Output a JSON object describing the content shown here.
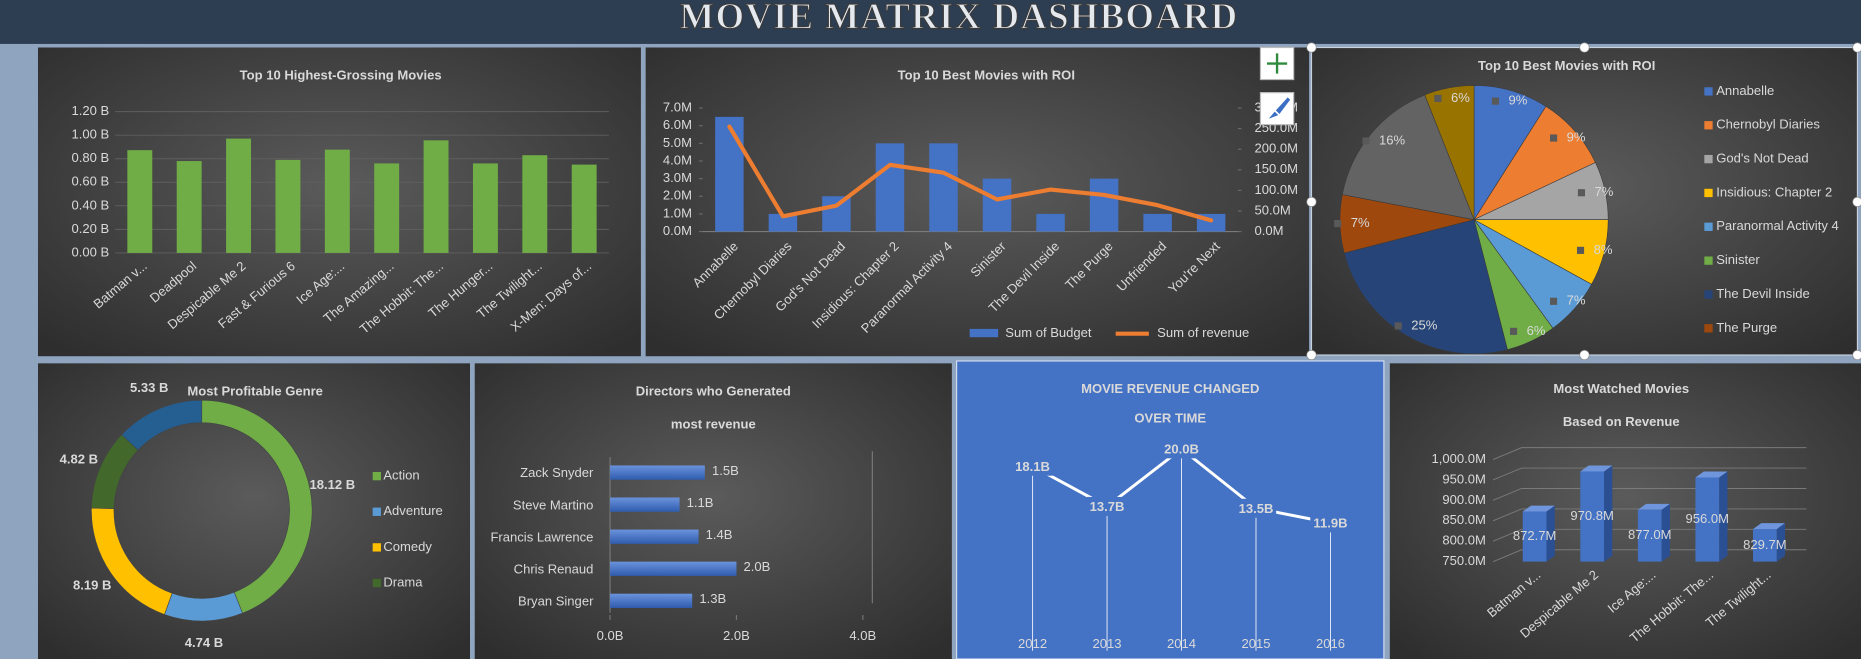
{
  "title": "MOVIE MATRIX DASHBOARD",
  "chart_data": [
    {
      "type": "bar",
      "title": "Top 10 Highest-Grossing Movies",
      "categories": [
        "Batman v...",
        "Deadpool",
        "Despicable Me 2",
        "Fast & Furious 6",
        "Ice Age:...",
        "The Amazing...",
        "The Hobbit: The...",
        "The Hunger...",
        "The Twilight...",
        "X-Men: Days of..."
      ],
      "values": [
        0.8727,
        0.78,
        0.9708,
        0.79,
        0.877,
        0.76,
        0.956,
        0.76,
        0.8297,
        0.75
      ],
      "color": "#70ad47",
      "ylim": [
        0,
        1.2
      ],
      "yticks": [
        {
          "value": 0,
          "label": "0.00 B"
        },
        {
          "value": 0.2,
          "label": "0.20 B"
        },
        {
          "value": 0.4,
          "label": "0.40 B"
        },
        {
          "value": 0.6,
          "label": "0.60 B"
        },
        {
          "value": 0.8,
          "label": "0.80 B"
        },
        {
          "value": 1.0,
          "label": "1.00 B"
        },
        {
          "value": 1.2,
          "label": "1.20 B"
        }
      ],
      "grid": true
    },
    {
      "type": "combo",
      "title": "Top 10 Best Movies with ROI",
      "categories": [
        "Annabelle",
        "Chernobyl Diaries",
        "God's Not Dead",
        "Insidious: Chapter 2",
        "Paranormal Activity 4",
        "Sinister",
        "The Devil Inside",
        "The Purge",
        "Unfriended",
        "You're Next"
      ],
      "series": [
        {
          "name": "Sum of Budget",
          "type": "bar",
          "color": "#4472c4",
          "values": [
            6.5,
            1,
            2,
            5,
            5,
            3,
            1,
            3,
            1,
            1
          ]
        },
        {
          "name": "Sum of revenue",
          "type": "line",
          "color": "#ed7d31",
          "axis": "y2",
          "values": [
            255,
            37,
            63,
            162,
            143,
            78,
            102,
            89,
            64,
            27
          ]
        }
      ],
      "ylim": [
        0,
        7
      ],
      "yticks": [
        {
          "value": 0,
          "label": "0.0M"
        },
        {
          "value": 1,
          "label": "1.0M"
        },
        {
          "value": 2,
          "label": "2.0M"
        },
        {
          "value": 3,
          "label": "3.0M"
        },
        {
          "value": 4,
          "label": "4.0M"
        },
        {
          "value": 5,
          "label": "5.0M"
        },
        {
          "value": 6,
          "label": "6.0M"
        },
        {
          "value": 7,
          "label": "7.0M"
        }
      ],
      "y2lim": [
        0,
        300
      ],
      "y2ticks": [
        {
          "value": 0,
          "label": "0.0M"
        },
        {
          "value": 50,
          "label": "50.0M"
        },
        {
          "value": 100,
          "label": "100.0M"
        },
        {
          "value": 150,
          "label": "150.0M"
        },
        {
          "value": 200,
          "label": "200.0M"
        },
        {
          "value": 250,
          "label": "250.0M"
        },
        {
          "value": 300,
          "label": "300.0M"
        }
      ],
      "legend": "bottom"
    },
    {
      "type": "pie",
      "title": "Top 10 Best Movies with ROI",
      "categories": [
        "Annabelle",
        "Chernobyl Diaries",
        "God's Not Dead",
        "Insidious: Chapter 2",
        "Paranormal Activity 4",
        "Sinister",
        "The Devil Inside",
        "The Purge",
        null,
        null
      ],
      "values": [
        9,
        9,
        7,
        8,
        7,
        6,
        25,
        7,
        16,
        6
      ],
      "value_labels": [
        "9%",
        "9%",
        "7%",
        "8%",
        "7%",
        "6%",
        "25%",
        "7%",
        "16%",
        "6%"
      ],
      "colors": [
        "#4472c4",
        "#ed7d31",
        "#a5a5a5",
        "#ffc000",
        "#5b9bd5",
        "#70ad47",
        "#264478",
        "#9e480e",
        "#636363",
        "#997300"
      ],
      "legend": "right"
    },
    {
      "type": "donut",
      "title": "Most Profitable Genre",
      "categories": [
        "Action",
        "Adventure",
        "Comedy",
        "Drama",
        null
      ],
      "values": [
        18.12,
        4.74,
        8.19,
        4.82,
        5.33
      ],
      "value_labels": [
        "18.12 B",
        "4.74 B",
        "8.19 B",
        "4.82 B",
        "5.33 B"
      ],
      "colors": [
        "#70ad47",
        "#5b9bd5",
        "#ffc000",
        "#43682b",
        "#255e91"
      ],
      "legend": "right"
    },
    {
      "type": "hbar",
      "title": [
        "Directors who Generated",
        "most revenue"
      ],
      "categories": [
        "Zack Snyder",
        "Steve Martino",
        "Francis Lawrence",
        "Chris Renaud",
        "Bryan Singer"
      ],
      "values": [
        1.5,
        1.1,
        1.4,
        2.0,
        1.3
      ],
      "value_labels": [
        "1.5B",
        "1.1B",
        "1.4B",
        "2.0B",
        "1.3B"
      ],
      "color": "#4472c4",
      "xlim": [
        0,
        4
      ],
      "xticks": [
        {
          "value": 0,
          "label": "0.0B"
        },
        {
          "value": 2,
          "label": "2.0B"
        },
        {
          "value": 4,
          "label": "4.0B"
        }
      ]
    },
    {
      "type": "line",
      "title": [
        "MOVIE REVENUE CHANGED",
        "OVER TIME"
      ],
      "categories": [
        "2012",
        "2013",
        "2014",
        "2015",
        "2016"
      ],
      "values": [
        18.1,
        13.7,
        20.0,
        13.5,
        11.9
      ],
      "value_labels": [
        "18.1B",
        "13.7B",
        "20.0B",
        "13.5B",
        "11.9B"
      ],
      "color": "#ffffff"
    },
    {
      "type": "bar3d",
      "title": [
        "Most Watched Movies",
        "Based on Revenue"
      ],
      "categories": [
        "Batman v...",
        "Despicable Me 2",
        "Ice Age:...",
        "The Hobbit: The...",
        "The Twilight..."
      ],
      "values": [
        872.7,
        970.8,
        877.0,
        956.0,
        829.7
      ],
      "value_labels": [
        "872.7M",
        "970.8M",
        "877.0M",
        "956.0M",
        "829.7M"
      ],
      "color": "#4472c4",
      "ylim": [
        750,
        1000
      ],
      "yticks": [
        {
          "value": 750,
          "label": "750.0M"
        },
        {
          "value": 800,
          "label": "800.0M"
        },
        {
          "value": 850,
          "label": "850.0M"
        },
        {
          "value": 900,
          "label": "900.0M"
        },
        {
          "value": 950,
          "label": "950.0M"
        },
        {
          "value": 1000,
          "label": "1,000.0M"
        }
      ],
      "grid": true
    }
  ]
}
